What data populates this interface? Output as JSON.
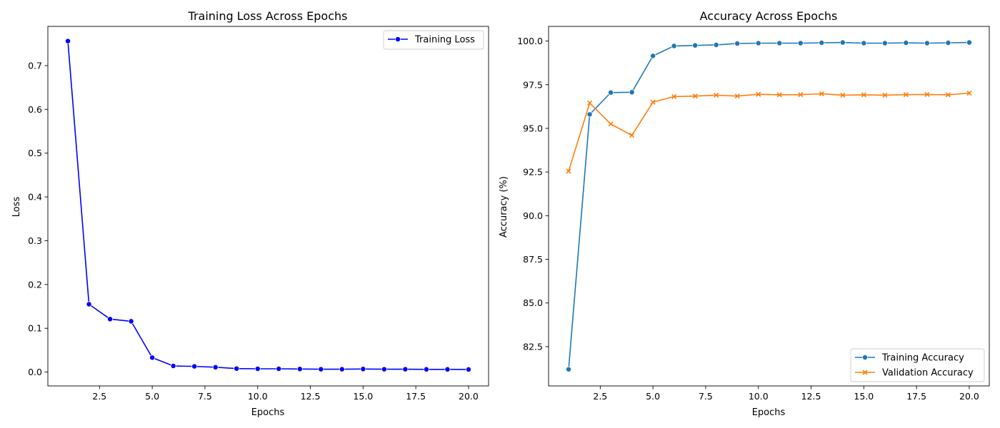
{
  "chart_data": [
    {
      "type": "line",
      "title": "Training Loss Across Epochs",
      "xlabel": "Epochs",
      "ylabel": "Loss",
      "xlim": [
        0.05,
        20.95
      ],
      "ylim": [
        -0.0316,
        0.7895
      ],
      "xticks": [
        2.5,
        5.0,
        7.5,
        10.0,
        12.5,
        15.0,
        17.5,
        20.0
      ],
      "xtick_labels": [
        "2.5",
        "5.0",
        "7.5",
        "10.0",
        "12.5",
        "15.0",
        "17.5",
        "20.0"
      ],
      "yticks": [
        0.0,
        0.1,
        0.2,
        0.3,
        0.4,
        0.5,
        0.6,
        0.7
      ],
      "ytick_labels": [
        "0.0",
        "0.1",
        "0.2",
        "0.3",
        "0.4",
        "0.5",
        "0.6",
        "0.7"
      ],
      "legend_position": "top-right",
      "grid": false,
      "series": [
        {
          "name": "Training Loss",
          "color": "#0000ff",
          "marker": "circle",
          "x": [
            1,
            2,
            3,
            4,
            5,
            6,
            7,
            8,
            9,
            10,
            11,
            12,
            13,
            14,
            15,
            16,
            17,
            18,
            19,
            20
          ],
          "values": [
            0.756,
            0.155,
            0.121,
            0.116,
            0.033,
            0.014,
            0.013,
            0.011,
            0.008,
            0.0075,
            0.0075,
            0.007,
            0.0065,
            0.0065,
            0.007,
            0.0065,
            0.0065,
            0.0062,
            0.0062,
            0.006
          ]
        }
      ]
    },
    {
      "type": "line",
      "title": "Accuracy Across Epochs",
      "xlabel": "Epochs",
      "ylabel": "Accuracy (%)",
      "xlim": [
        0.05,
        20.95
      ],
      "ylim": [
        80.25,
        100.84
      ],
      "xticks": [
        2.5,
        5.0,
        7.5,
        10.0,
        12.5,
        15.0,
        17.5,
        20.0
      ],
      "xtick_labels": [
        "2.5",
        "5.0",
        "7.5",
        "10.0",
        "12.5",
        "15.0",
        "17.5",
        "20.0"
      ],
      "yticks": [
        82.5,
        85.0,
        87.5,
        90.0,
        92.5,
        95.0,
        97.5,
        100.0
      ],
      "ytick_labels": [
        "82.5",
        "85.0",
        "87.5",
        "90.0",
        "92.5",
        "95.0",
        "97.5",
        "100.0"
      ],
      "legend_position": "bottom-right",
      "grid": false,
      "series": [
        {
          "name": "Training Accuracy",
          "color": "#1f77b4",
          "marker": "circle",
          "x": [
            1,
            2,
            3,
            4,
            5,
            6,
            7,
            8,
            9,
            10,
            11,
            12,
            13,
            14,
            15,
            16,
            17,
            18,
            19,
            20
          ],
          "values": [
            81.2,
            95.8,
            97.05,
            97.07,
            99.15,
            99.72,
            99.75,
            99.78,
            99.86,
            99.88,
            99.88,
            99.88,
            99.9,
            99.92,
            99.88,
            99.88,
            99.9,
            99.88,
            99.9,
            99.92
          ]
        },
        {
          "name": "Validation Accuracy",
          "color": "#ff7f0e",
          "marker": "x",
          "x": [
            1,
            2,
            3,
            4,
            5,
            6,
            7,
            8,
            9,
            10,
            11,
            12,
            13,
            14,
            15,
            16,
            17,
            18,
            19,
            20
          ],
          "values": [
            92.55,
            96.45,
            95.25,
            94.6,
            96.5,
            96.82,
            96.85,
            96.9,
            96.85,
            96.95,
            96.92,
            96.93,
            96.98,
            96.9,
            96.92,
            96.9,
            96.93,
            96.94,
            96.92,
            97.02
          ]
        }
      ]
    }
  ]
}
